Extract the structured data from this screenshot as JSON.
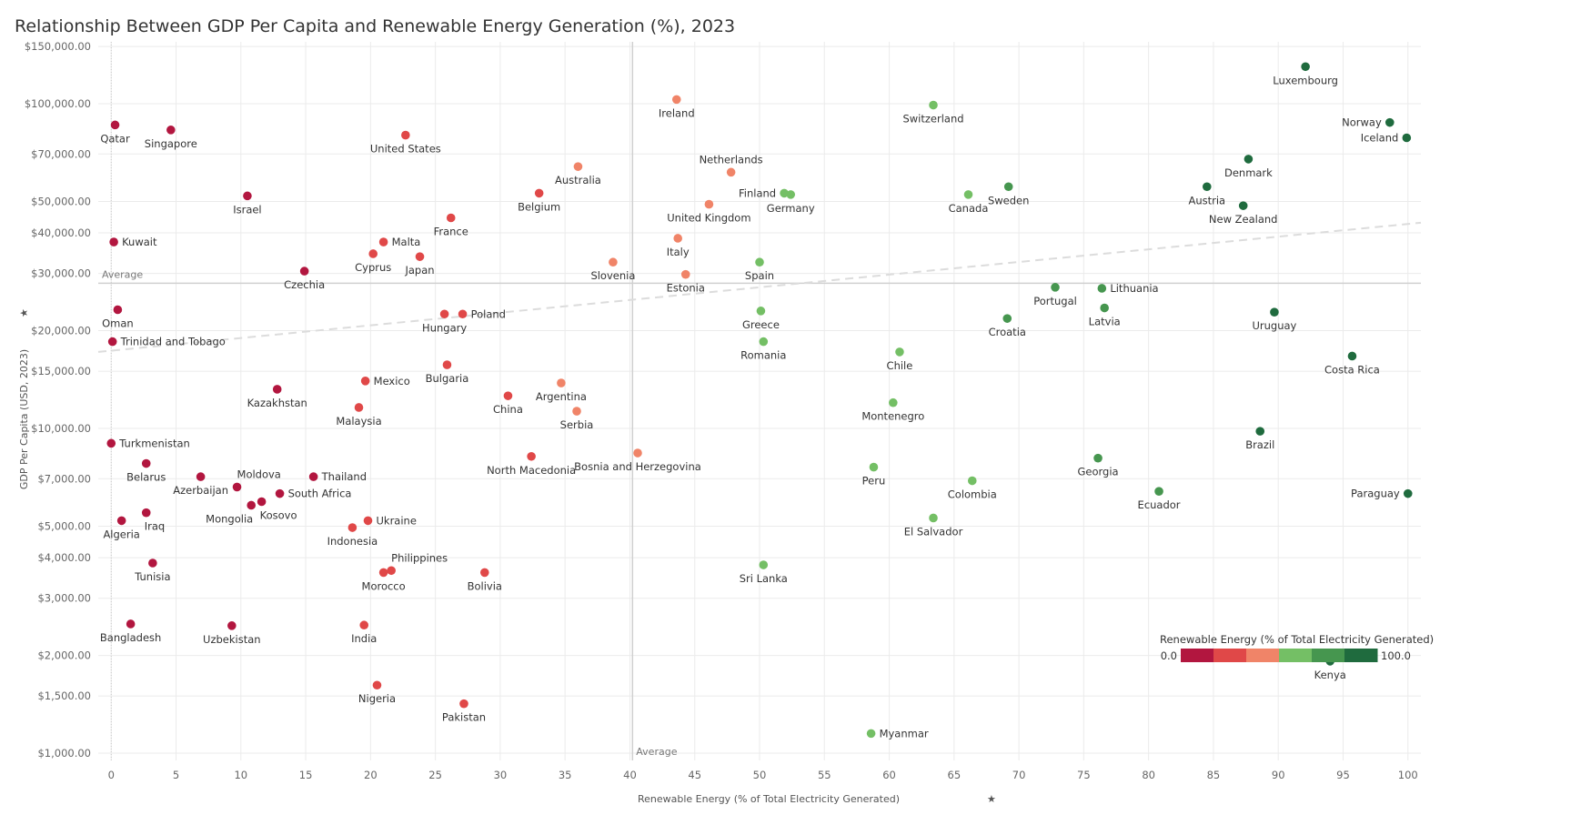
{
  "title": "Relationship Between GDP Per Capita and Renewable Energy Generation (%), 2023",
  "colors": {
    "scale": [
      "#b2163f",
      "#e04848",
      "#f08468",
      "#74bf65",
      "#46964f",
      "#1f6b3e"
    ],
    "grid": "#ebebeb",
    "avg_line": "#d0d0d0",
    "trend_line": "#dcdcdc"
  },
  "pin_icon": "pin-icon",
  "chart_data": {
    "type": "scatter",
    "title": "Relationship Between GDP Per Capita and Renewable Energy Generation (%), 2023",
    "xlabel": "Renewable Energy (% of Total Electricity Generated)",
    "ylabel": "GDP Per Capita (USD, 2023)",
    "xlim": [
      -1,
      101
    ],
    "ylim": [
      950,
      155000
    ],
    "yscale": "log",
    "grid": true,
    "x_ticks": [
      0,
      5,
      10,
      15,
      20,
      25,
      30,
      35,
      40,
      45,
      50,
      55,
      60,
      65,
      70,
      75,
      80,
      85,
      90,
      95,
      100
    ],
    "x_tick_labels": [
      "0",
      "5",
      "10",
      "15",
      "20",
      "25",
      "30",
      "35",
      "40",
      "45",
      "50",
      "55",
      "60",
      "65",
      "70",
      "75",
      "80",
      "85",
      "90",
      "95",
      "100"
    ],
    "y_ticks": [
      1000,
      1500,
      2000,
      3000,
      4000,
      5000,
      7000,
      10000,
      15000,
      20000,
      30000,
      40000,
      50000,
      70000,
      100000,
      150000
    ],
    "y_tick_labels": [
      "$1,000.00",
      "$1,500.00",
      "$2,000.00",
      "$3,000.00",
      "$4,000.00",
      "$5,000.00",
      "$7,000.00",
      "$10,000.00",
      "$15,000.00",
      "$20,000.00",
      "$30,000.00",
      "$40,000.00",
      "$50,000.00",
      "$70,000.00",
      "$100,000.00",
      "$150,000.00"
    ],
    "reference_lines": {
      "x_average": 40.2,
      "y_average": 28000,
      "x_average_label": "Average",
      "y_average_label": "Average"
    },
    "trend_line": {
      "start": [
        -1,
        17200
      ],
      "end": [
        101,
        43000
      ]
    },
    "legend": {
      "title": "Renewable Energy (% of Total Electricity Generated)",
      "min_label": "0.0",
      "max_label": "100.0",
      "placement": "bottom-right"
    },
    "points": [
      {
        "name": "Qatar",
        "x": 0.3,
        "y": 86000,
        "color_level": 0,
        "label_pos": "below"
      },
      {
        "name": "Singapore",
        "x": 4.6,
        "y": 83000,
        "color_level": 0,
        "label_pos": "below"
      },
      {
        "name": "Israel",
        "x": 10.5,
        "y": 52000,
        "color_level": 0,
        "label_pos": "below"
      },
      {
        "name": "Kuwait",
        "x": 0.2,
        "y": 37500,
        "color_level": 0,
        "label_pos": "right"
      },
      {
        "name": "Czechia",
        "x": 14.9,
        "y": 30500,
        "color_level": 0,
        "label_pos": "below"
      },
      {
        "name": "Oman",
        "x": 0.5,
        "y": 23200,
        "color_level": 0,
        "label_pos": "below"
      },
      {
        "name": "Trinidad and Tobago",
        "x": 0.1,
        "y": 18500,
        "color_level": 0,
        "label_pos": "right"
      },
      {
        "name": "Kazakhstan",
        "x": 12.8,
        "y": 13200,
        "color_level": 0,
        "label_pos": "below"
      },
      {
        "name": "Turkmenistan",
        "x": 0.0,
        "y": 9000,
        "color_level": 0,
        "label_pos": "right"
      },
      {
        "name": "Belarus",
        "x": 2.7,
        "y": 7800,
        "color_level": 0,
        "label_pos": "below"
      },
      {
        "name": "Azerbaijan",
        "x": 6.9,
        "y": 7100,
        "color_level": 0,
        "label_pos": "below"
      },
      {
        "name": "Moldova",
        "x": 9.7,
        "y": 6600,
        "color_level": 0,
        "label_pos": "above-right"
      },
      {
        "name": "Mongolia",
        "x": 10.8,
        "y": 5800,
        "color_level": 0,
        "label_pos": "below-left"
      },
      {
        "name": "Kosovo",
        "x": 11.6,
        "y": 5950,
        "color_level": 0,
        "label_pos": "below-right"
      },
      {
        "name": "South Africa",
        "x": 13.0,
        "y": 6300,
        "color_level": 0,
        "label_pos": "right"
      },
      {
        "name": "Thailand",
        "x": 15.6,
        "y": 7100,
        "color_level": 0,
        "label_pos": "right"
      },
      {
        "name": "Iraq",
        "x": 2.7,
        "y": 5500,
        "color_level": 0,
        "label_pos": "below-right"
      },
      {
        "name": "Algeria",
        "x": 0.8,
        "y": 5200,
        "color_level": 0,
        "label_pos": "below"
      },
      {
        "name": "Tunisia",
        "x": 3.2,
        "y": 3850,
        "color_level": 0,
        "label_pos": "below"
      },
      {
        "name": "Bangladesh",
        "x": 1.5,
        "y": 2500,
        "color_level": 0,
        "label_pos": "below"
      },
      {
        "name": "Uzbekistan",
        "x": 9.3,
        "y": 2470,
        "color_level": 0,
        "label_pos": "below"
      },
      {
        "name": "United States",
        "x": 22.7,
        "y": 80000,
        "color_level": 1,
        "label_pos": "below"
      },
      {
        "name": "Malta",
        "x": 21.0,
        "y": 37500,
        "color_level": 1,
        "label_pos": "right"
      },
      {
        "name": "Cyprus",
        "x": 20.2,
        "y": 34500,
        "color_level": 1,
        "label_pos": "below"
      },
      {
        "name": "Japan",
        "x": 23.8,
        "y": 33800,
        "color_level": 1,
        "label_pos": "below"
      },
      {
        "name": "France",
        "x": 26.2,
        "y": 44500,
        "color_level": 1,
        "label_pos": "below"
      },
      {
        "name": "Belgium",
        "x": 33.0,
        "y": 53000,
        "color_level": 1,
        "label_pos": "below"
      },
      {
        "name": "Hungary",
        "x": 25.7,
        "y": 22500,
        "color_level": 1,
        "label_pos": "below"
      },
      {
        "name": "Poland",
        "x": 27.1,
        "y": 22500,
        "color_level": 1,
        "label_pos": "right"
      },
      {
        "name": "Bulgaria",
        "x": 25.9,
        "y": 15700,
        "color_level": 1,
        "label_pos": "below"
      },
      {
        "name": "Mexico",
        "x": 19.6,
        "y": 14000,
        "color_level": 1,
        "label_pos": "right"
      },
      {
        "name": "Malaysia",
        "x": 19.1,
        "y": 11600,
        "color_level": 1,
        "label_pos": "below"
      },
      {
        "name": "China",
        "x": 30.6,
        "y": 12600,
        "color_level": 1,
        "label_pos": "below"
      },
      {
        "name": "North Macedonia",
        "x": 32.4,
        "y": 8200,
        "color_level": 1,
        "label_pos": "below"
      },
      {
        "name": "Ukraine",
        "x": 19.8,
        "y": 5200,
        "color_level": 1,
        "label_pos": "right"
      },
      {
        "name": "Indonesia",
        "x": 18.6,
        "y": 4950,
        "color_level": 1,
        "label_pos": "below"
      },
      {
        "name": "Philippines",
        "x": 21.6,
        "y": 3650,
        "color_level": 1,
        "label_pos": "above-right"
      },
      {
        "name": "Morocco",
        "x": 21.0,
        "y": 3600,
        "color_level": 1,
        "label_pos": "below"
      },
      {
        "name": "Bolivia",
        "x": 28.8,
        "y": 3600,
        "color_level": 1,
        "label_pos": "below"
      },
      {
        "name": "India",
        "x": 19.5,
        "y": 2480,
        "color_level": 1,
        "label_pos": "below"
      },
      {
        "name": "Nigeria",
        "x": 20.5,
        "y": 1620,
        "color_level": 1,
        "label_pos": "below"
      },
      {
        "name": "Pakistan",
        "x": 27.2,
        "y": 1420,
        "color_level": 1,
        "label_pos": "below"
      },
      {
        "name": "Ireland",
        "x": 43.6,
        "y": 103000,
        "color_level": 2,
        "label_pos": "below"
      },
      {
        "name": "Australia",
        "x": 36.0,
        "y": 64000,
        "color_level": 2,
        "label_pos": "below"
      },
      {
        "name": "Netherlands",
        "x": 47.8,
        "y": 61500,
        "color_level": 2,
        "label_pos": "above"
      },
      {
        "name": "United Kingdom",
        "x": 46.1,
        "y": 49000,
        "color_level": 2,
        "label_pos": "below"
      },
      {
        "name": "Italy",
        "x": 43.7,
        "y": 38500,
        "color_level": 2,
        "label_pos": "below"
      },
      {
        "name": "Slovenia",
        "x": 38.7,
        "y": 32500,
        "color_level": 2,
        "label_pos": "below"
      },
      {
        "name": "Estonia",
        "x": 44.3,
        "y": 29800,
        "color_level": 2,
        "label_pos": "below"
      },
      {
        "name": "Argentina",
        "x": 34.7,
        "y": 13800,
        "color_level": 2,
        "label_pos": "below"
      },
      {
        "name": "Serbia",
        "x": 35.9,
        "y": 11300,
        "color_level": 2,
        "label_pos": "below"
      },
      {
        "name": "Bosnia and Herzegovina",
        "x": 40.6,
        "y": 8400,
        "color_level": 2,
        "label_pos": "below"
      },
      {
        "name": "Switzerland",
        "x": 63.4,
        "y": 99000,
        "color_level": 3,
        "label_pos": "below"
      },
      {
        "name": "Finland",
        "x": 51.9,
        "y": 53000,
        "color_level": 3,
        "label_pos": "left"
      },
      {
        "name": "Germany",
        "x": 52.4,
        "y": 52500,
        "color_level": 3,
        "label_pos": "below"
      },
      {
        "name": "Canada",
        "x": 66.1,
        "y": 52500,
        "color_level": 3,
        "label_pos": "below"
      },
      {
        "name": "Spain",
        "x": 50.0,
        "y": 32500,
        "color_level": 3,
        "label_pos": "below"
      },
      {
        "name": "Greece",
        "x": 50.1,
        "y": 23000,
        "color_level": 3,
        "label_pos": "below"
      },
      {
        "name": "Romania",
        "x": 50.3,
        "y": 18500,
        "color_level": 3,
        "label_pos": "below"
      },
      {
        "name": "Chile",
        "x": 60.8,
        "y": 17200,
        "color_level": 3,
        "label_pos": "below"
      },
      {
        "name": "Montenegro",
        "x": 60.3,
        "y": 12000,
        "color_level": 3,
        "label_pos": "below"
      },
      {
        "name": "Peru",
        "x": 58.8,
        "y": 7600,
        "color_level": 3,
        "label_pos": "below"
      },
      {
        "name": "Colombia",
        "x": 66.4,
        "y": 6900,
        "color_level": 3,
        "label_pos": "below"
      },
      {
        "name": "El Salvador",
        "x": 63.4,
        "y": 5300,
        "color_level": 3,
        "label_pos": "below"
      },
      {
        "name": "Sri Lanka",
        "x": 50.3,
        "y": 3800,
        "color_level": 3,
        "label_pos": "below"
      },
      {
        "name": "Myanmar",
        "x": 58.6,
        "y": 1150,
        "color_level": 3,
        "label_pos": "right"
      },
      {
        "name": "Sweden",
        "x": 69.2,
        "y": 55500,
        "color_level": 4,
        "label_pos": "below"
      },
      {
        "name": "Portugal",
        "x": 72.8,
        "y": 27200,
        "color_level": 4,
        "label_pos": "below"
      },
      {
        "name": "Lithuania",
        "x": 76.4,
        "y": 27000,
        "color_level": 4,
        "label_pos": "right"
      },
      {
        "name": "Latvia",
        "x": 76.6,
        "y": 23500,
        "color_level": 4,
        "label_pos": "below"
      },
      {
        "name": "Croatia",
        "x": 69.1,
        "y": 21800,
        "color_level": 4,
        "label_pos": "below"
      },
      {
        "name": "Georgia",
        "x": 76.1,
        "y": 8100,
        "color_level": 4,
        "label_pos": "below"
      },
      {
        "name": "Ecuador",
        "x": 80.8,
        "y": 6400,
        "color_level": 4,
        "label_pos": "below"
      },
      {
        "name": "Luxembourg",
        "x": 92.1,
        "y": 130000,
        "color_level": 5,
        "label_pos": "below"
      },
      {
        "name": "Norway",
        "x": 98.6,
        "y": 87500,
        "color_level": 5,
        "label_pos": "left"
      },
      {
        "name": "Iceland",
        "x": 99.9,
        "y": 78500,
        "color_level": 5,
        "label_pos": "left"
      },
      {
        "name": "Denmark",
        "x": 87.7,
        "y": 67500,
        "color_level": 5,
        "label_pos": "below"
      },
      {
        "name": "Austria",
        "x": 84.5,
        "y": 55500,
        "color_level": 5,
        "label_pos": "below"
      },
      {
        "name": "New Zealand",
        "x": 87.3,
        "y": 48500,
        "color_level": 5,
        "label_pos": "below"
      },
      {
        "name": "Uruguay",
        "x": 89.7,
        "y": 22800,
        "color_level": 5,
        "label_pos": "below"
      },
      {
        "name": "Costa Rica",
        "x": 95.7,
        "y": 16700,
        "color_level": 5,
        "label_pos": "below"
      },
      {
        "name": "Brazil",
        "x": 88.6,
        "y": 9800,
        "color_level": 5,
        "label_pos": "below"
      },
      {
        "name": "Paraguay",
        "x": 100.0,
        "y": 6300,
        "color_level": 5,
        "label_pos": "left"
      },
      {
        "name": "Kenya",
        "x": 94.0,
        "y": 1920,
        "color_level": 5,
        "label_pos": "below"
      }
    ]
  }
}
